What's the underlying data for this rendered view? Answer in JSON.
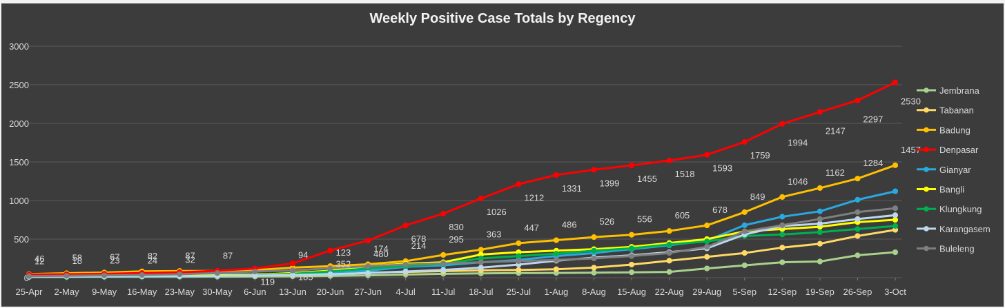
{
  "chart_data": {
    "type": "line",
    "title": "Weekly Positive Case Totals by Regency",
    "xlabel": "",
    "ylabel": "",
    "ylim": [
      0,
      3000
    ],
    "yticks": [
      "0",
      "500",
      "1000",
      "1500",
      "2000",
      "2500",
      "3000"
    ],
    "categories": [
      "25-Apr",
      "2-May",
      "9-May",
      "16-May",
      "23-May",
      "30-May",
      "6-Jun",
      "13-Jun",
      "20-Jun",
      "27-Jun",
      "4-Jul",
      "11-Jul",
      "18-Jul",
      "25-Jul",
      "1-Aug",
      "8-Aug",
      "15-Aug",
      "22-Aug",
      "29-Aug",
      "5-Sep",
      "12-Sep",
      "19-Sep",
      "26-Sep",
      "3-Oct"
    ],
    "grid": true,
    "legend_position": "right",
    "series": [
      {
        "name": "Jembrana",
        "color": "#a9d18e",
        "values": [
          10,
          10,
          11,
          12,
          12,
          13,
          15,
          18,
          22,
          30,
          40,
          50,
          55,
          60,
          62,
          65,
          70,
          75,
          120,
          160,
          200,
          210,
          290,
          330
        ]
      },
      {
        "name": "Tabanan",
        "color": "#ffd966",
        "values": [
          20,
          22,
          25,
          28,
          30,
          32,
          40,
          45,
          55,
          65,
          75,
          85,
          95,
          100,
          110,
          130,
          170,
          220,
          270,
          320,
          390,
          440,
          540,
          620
        ]
      },
      {
        "name": "Badung",
        "color": "#ffc000",
        "values": [
          46,
          58,
          67,
          82,
          87,
          87,
          98,
          130,
          150,
          174,
          214,
          295,
          363,
          447,
          486,
          526,
          556,
          605,
          678,
          849,
          1046,
          1162,
          1284,
          1457
        ],
        "labels": [
          "46",
          "58",
          "67",
          "82",
          "87",
          "87",
          "",
          "",
          "",
          "174",
          "214",
          "295",
          "363",
          "447",
          "486",
          "526",
          "556",
          "605",
          "678",
          "849",
          "1046",
          "1162",
          "1284",
          "1457"
        ]
      },
      {
        "name": "Denpasar",
        "color": "#ff0000",
        "values": [
          40,
          45,
          50,
          60,
          70,
          90,
          119,
          185,
          352,
          480,
          678,
          830,
          1026,
          1212,
          1331,
          1399,
          1455,
          1518,
          1593,
          1759,
          1994,
          2147,
          2297,
          2530
        ],
        "labels": [
          "",
          "",
          "",
          "",
          "",
          "",
          "119",
          "185",
          "352",
          "480",
          "678",
          "830",
          "1026",
          "1212",
          "1331",
          "1399",
          "1455",
          "1518",
          "1593",
          "1759",
          "1994",
          "2147",
          "2297",
          "2530"
        ]
      },
      {
        "name": "Gianyar",
        "color": "#2aa9e0",
        "values": [
          12,
          18,
          23,
          24,
          32,
          38,
          45,
          50,
          60,
          90,
          140,
          160,
          200,
          230,
          280,
          320,
          370,
          420,
          480,
          680,
          790,
          860,
          1010,
          1120
        ],
        "labels": [
          "12",
          "18",
          "23",
          "24",
          "32",
          "",
          "",
          "",
          "",
          "",
          "",
          "",
          "",
          "",
          "",
          "",
          "",
          "",
          "",
          "",
          "",
          "",
          "",
          ""
        ]
      },
      {
        "name": "Bangli",
        "color": "#ffff00",
        "values": [
          15,
          17,
          20,
          22,
          25,
          30,
          38,
          60,
          90,
          150,
          180,
          200,
          300,
          330,
          350,
          370,
          400,
          450,
          500,
          600,
          630,
          660,
          720,
          750
        ]
      },
      {
        "name": "Klungkung",
        "color": "#00b050",
        "values": [
          8,
          9,
          10,
          12,
          15,
          20,
          30,
          50,
          80,
          120,
          150,
          180,
          250,
          280,
          310,
          350,
          380,
          430,
          470,
          540,
          560,
          590,
          630,
          670
        ]
      },
      {
        "name": "Karangasem",
        "color": "#bdd7ee",
        "values": [
          10,
          12,
          14,
          16,
          18,
          22,
          28,
          35,
          45,
          60,
          80,
          100,
          130,
          170,
          220,
          260,
          290,
          330,
          380,
          560,
          670,
          700,
          760,
          810
        ]
      },
      {
        "name": "Buleleng",
        "color": "#7f7f7f",
        "values": [
          20,
          25,
          30,
          35,
          45,
          60,
          80,
          94,
          123,
          150,
          170,
          185,
          200,
          215,
          230,
          250,
          280,
          320,
          400,
          600,
          680,
          760,
          850,
          900
        ],
        "labels": [
          "",
          "",
          "",
          "",
          "",
          "",
          "",
          "94",
          "123",
          "",
          "",
          "",
          "",
          "",
          "",
          "",
          "",
          "",
          "",
          "",
          "",
          "",
          "",
          ""
        ]
      }
    ]
  }
}
